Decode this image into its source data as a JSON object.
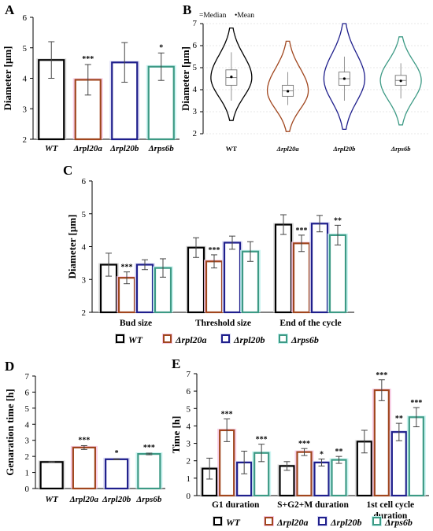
{
  "colors": {
    "WT": "#000000",
    "Δrpl20a": "#a0461e",
    "Δrpl20b": "#1f1f8c",
    "Δrps6b": "#3d9a85",
    "glow_WT": "#d9d9d9",
    "glow_Δrpl20a": "#f6c6e2",
    "glow_Δrpl20b": "#d8d8f4",
    "glow_Δrps6b": "#c3f2ee"
  },
  "strains": [
    "WT",
    "Δrpl20a",
    "Δrpl20b",
    "Δrps6b"
  ],
  "chart_data": [
    {
      "id": "A",
      "type": "bar",
      "panel_label": "A",
      "categories": [
        "WT",
        "Δrpl20a",
        "Δrpl20b",
        "Δrps6b"
      ],
      "values": [
        4.6,
        3.95,
        4.52,
        4.38
      ],
      "errors": [
        0.6,
        0.5,
        0.65,
        0.45
      ],
      "significance": [
        "",
        "***",
        "",
        "*"
      ],
      "ylabel": "Diameter [µm]",
      "ylim": [
        2,
        6
      ],
      "yticks": [
        "2",
        "3",
        "4",
        "5",
        "6"
      ]
    },
    {
      "id": "B",
      "type": "violin",
      "panel_label": "B",
      "legend": [
        "=Median",
        "•Mean"
      ],
      "categories": [
        "WT",
        "Δrpl20a",
        "Δrpl20b",
        "Δrps6b"
      ],
      "range": [
        [
          2.6,
          6.8
        ],
        [
          2.1,
          6.2
        ],
        [
          2.2,
          7.0
        ],
        [
          2.4,
          6.4
        ]
      ],
      "box_q1": [
        4.2,
        3.7,
        4.2,
        4.2
      ],
      "box_q3": [
        4.9,
        4.2,
        4.8,
        4.65
      ],
      "median": [
        4.55,
        3.95,
        4.5,
        4.42
      ],
      "mean": [
        4.58,
        3.93,
        4.5,
        4.4
      ],
      "whiskers": [
        [
          3.5,
          5.7
        ],
        [
          3.3,
          4.8
        ],
        [
          3.5,
          5.5
        ],
        [
          3.6,
          5.2
        ]
      ],
      "ylabel": "Diameter [µm]",
      "ylim": [
        2,
        7
      ],
      "yticks": [
        "2",
        "3",
        "4",
        "5",
        "6",
        "7"
      ]
    },
    {
      "id": "C",
      "type": "bar",
      "panel_label": "C",
      "categories": [
        "Bud size",
        "Threshold size",
        "End of the cycle"
      ],
      "series": [
        {
          "name": "WT",
          "values": [
            3.45,
            3.97,
            4.67
          ],
          "errors": [
            0.35,
            0.3,
            0.3
          ],
          "significance": [
            "",
            "",
            ""
          ]
        },
        {
          "name": "Δrpl20a",
          "values": [
            3.05,
            3.55,
            4.1
          ],
          "errors": [
            0.18,
            0.2,
            0.25
          ],
          "significance": [
            "***",
            "***",
            "***"
          ]
        },
        {
          "name": "Δrpl20b",
          "values": [
            3.45,
            4.12,
            4.7
          ],
          "errors": [
            0.15,
            0.2,
            0.25
          ],
          "significance": [
            "",
            "",
            ""
          ]
        },
        {
          "name": "Δrps6b",
          "values": [
            3.35,
            3.85,
            4.35
          ],
          "errors": [
            0.28,
            0.3,
            0.3
          ],
          "significance": [
            "",
            "",
            "**"
          ]
        }
      ],
      "ylabel": "Diameter [µm]",
      "ylim": [
        2,
        6
      ],
      "yticks": [
        "2",
        "3",
        "4",
        "5",
        "6"
      ],
      "legend": [
        "WT",
        "Δrpl20a",
        "Δrpl20b",
        "Δrps6b"
      ]
    },
    {
      "id": "D",
      "type": "bar",
      "panel_label": "D",
      "categories": [
        "WT",
        "Δrpl20a",
        "Δrpl20b",
        "Δrps6b"
      ],
      "values": [
        1.65,
        2.55,
        1.82,
        2.15
      ],
      "errors": [
        0.03,
        0.12,
        0.03,
        0.05
      ],
      "significance": [
        "",
        "***",
        "*",
        "***"
      ],
      "ylabel": "Genaration time [h]",
      "ylim": [
        0,
        7
      ],
      "yticks": [
        "0",
        "1",
        "2",
        "3",
        "4",
        "5",
        "6",
        "7"
      ]
    },
    {
      "id": "E",
      "type": "bar",
      "panel_label": "E",
      "categories": [
        "G1 duration",
        "S+G2+M duration",
        "1st cell cycle duration"
      ],
      "category_lines": [
        [
          "G1 duration"
        ],
        [
          "S+G2+M duration"
        ],
        [
          "1st cell cycle",
          "duration"
        ]
      ],
      "series": [
        {
          "name": "WT",
          "values": [
            1.55,
            1.7,
            3.1
          ],
          "errors": [
            0.6,
            0.25,
            0.65
          ],
          "significance": [
            "",
            "",
            ""
          ]
        },
        {
          "name": "Δrpl20a",
          "values": [
            3.75,
            2.5,
            6.05
          ],
          "errors": [
            0.65,
            0.2,
            0.6
          ],
          "significance": [
            "***",
            "***",
            "***"
          ]
        },
        {
          "name": "Δrpl20b",
          "values": [
            1.9,
            1.9,
            3.65
          ],
          "errors": [
            0.65,
            0.2,
            0.5
          ],
          "significance": [
            "",
            "*",
            "**"
          ]
        },
        {
          "name": "Δrps6b",
          "values": [
            2.45,
            2.05,
            4.5
          ],
          "errors": [
            0.5,
            0.2,
            0.55
          ],
          "significance": [
            "***",
            "**",
            "***"
          ]
        }
      ],
      "ylabel": "Time [h]",
      "ylim": [
        0,
        7
      ],
      "yticks": [
        "0",
        "1",
        "2",
        "3",
        "4",
        "5",
        "6",
        "7"
      ],
      "legend": [
        "WT",
        "Δrpl20a",
        "Δrpl20b",
        "Δrps6b"
      ]
    }
  ]
}
